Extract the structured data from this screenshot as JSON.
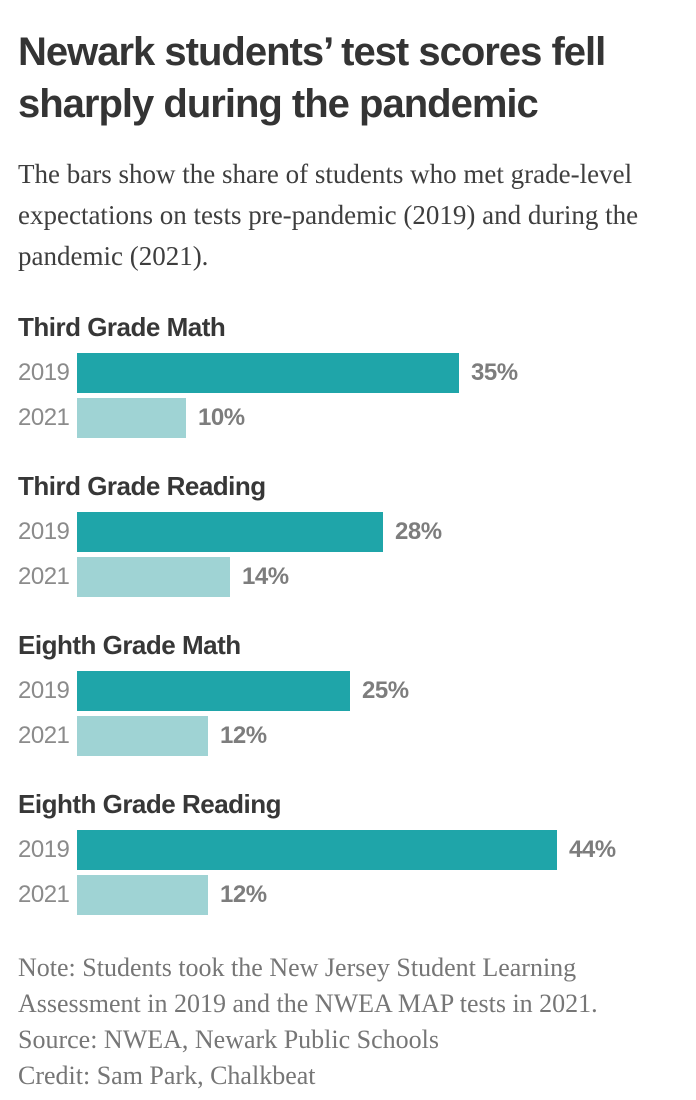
{
  "title_lines": [
    "Newark students’ test scores fell",
    "sharply during the pandemic"
  ],
  "subtitle": "The bars show the share of students who met grade-level expectations on tests pre-pandemic (2019) and during the pandemic (2021).",
  "colors": {
    "bar_2019": "#1FA5A9",
    "bar_2021": "#9FD3D4",
    "title_text": "#343434",
    "label_gray": "#8b8b8b"
  },
  "chart_data": {
    "type": "bar",
    "orientation": "horizontal",
    "unit": "%",
    "categories": [
      "2019",
      "2021"
    ],
    "axis_max_percent": 54.5,
    "grid": false,
    "legend": "none",
    "groups": [
      {
        "label": "Third Grade Math",
        "series": [
          {
            "year": "2019",
            "value": 35,
            "value_label": "35%"
          },
          {
            "year": "2021",
            "value": 10,
            "value_label": "10%"
          }
        ]
      },
      {
        "label": "Third Grade Reading",
        "series": [
          {
            "year": "2019",
            "value": 28,
            "value_label": "28%"
          },
          {
            "year": "2021",
            "value": 14,
            "value_label": "14%"
          }
        ]
      },
      {
        "label": "Eighth Grade Math",
        "series": [
          {
            "year": "2019",
            "value": 25,
            "value_label": "25%"
          },
          {
            "year": "2021",
            "value": 12,
            "value_label": "12%"
          }
        ]
      },
      {
        "label": "Eighth Grade Reading",
        "series": [
          {
            "year": "2019",
            "value": 44,
            "value_label": "44%"
          },
          {
            "year": "2021",
            "value": 12,
            "value_label": "12%"
          }
        ]
      }
    ]
  },
  "footer": {
    "note": "Note: Students took the New Jersey Student Learning Assessment in 2019 and the NWEA MAP tests in 2021.",
    "source": "Source: NWEA, Newark Public Schools",
    "credit": "Credit: Sam Park, Chalkbeat"
  }
}
